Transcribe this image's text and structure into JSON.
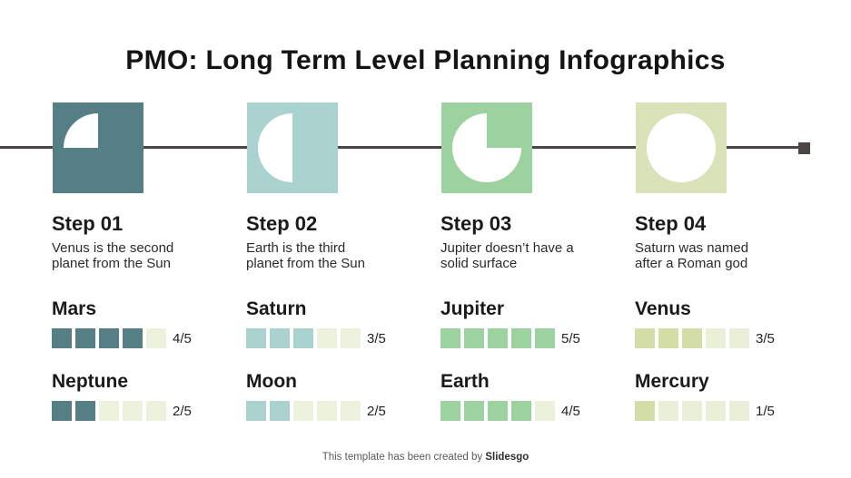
{
  "title": "PMO: Long Term Level Planning Infographics",
  "timeline": {
    "line_color": "#4B4545"
  },
  "steps": [
    {
      "label": "Step 01",
      "description": "Venus is the second\nplanet from the Sun",
      "pie_percent": 25,
      "square_color": "#567E85",
      "rating_filled_color": "#567E85",
      "rating_empty_color": "#EDF2DC",
      "ratings": [
        {
          "name": "Mars",
          "value": 4,
          "max": 5,
          "score_label": "4/5"
        },
        {
          "name": "Neptune",
          "value": 2,
          "max": 5,
          "score_label": "2/5"
        }
      ]
    },
    {
      "label": "Step 02",
      "description": "Earth is the third\nplanet from the Sun",
      "pie_percent": 50,
      "square_color": "#AAD3CF",
      "rating_filled_color": "#AAD3CF",
      "rating_empty_color": "#EDF2DC",
      "ratings": [
        {
          "name": "Saturn",
          "value": 3,
          "max": 5,
          "score_label": "3/5"
        },
        {
          "name": "Moon",
          "value": 2,
          "max": 5,
          "score_label": "2/5"
        }
      ]
    },
    {
      "label": "Step 03",
      "description": "Jupiter doesn’t have a\nsolid surface",
      "pie_percent": 75,
      "square_color": "#9BD2A0",
      "rating_filled_color": "#9BD2A0",
      "rating_empty_color": "#ECF1D9",
      "ratings": [
        {
          "name": "Jupiter",
          "value": 5,
          "max": 5,
          "score_label": "5/5"
        },
        {
          "name": "Earth",
          "value": 4,
          "max": 5,
          "score_label": "4/5"
        }
      ]
    },
    {
      "label": "Step 04",
      "description": "Saturn was named\nafter a Roman god",
      "pie_percent": 100,
      "square_color": "#DAE2B9",
      "rating_filled_color": "#D2DEA6",
      "rating_empty_color": "#EAF0D7",
      "ratings": [
        {
          "name": "Venus",
          "value": 3,
          "max": 5,
          "score_label": "3/5"
        },
        {
          "name": "Mercury",
          "value": 1,
          "max": 5,
          "score_label": "1/5"
        }
      ]
    }
  ],
  "footer": {
    "prefix": "This template has been created by ",
    "brand": "Slidesgo"
  }
}
